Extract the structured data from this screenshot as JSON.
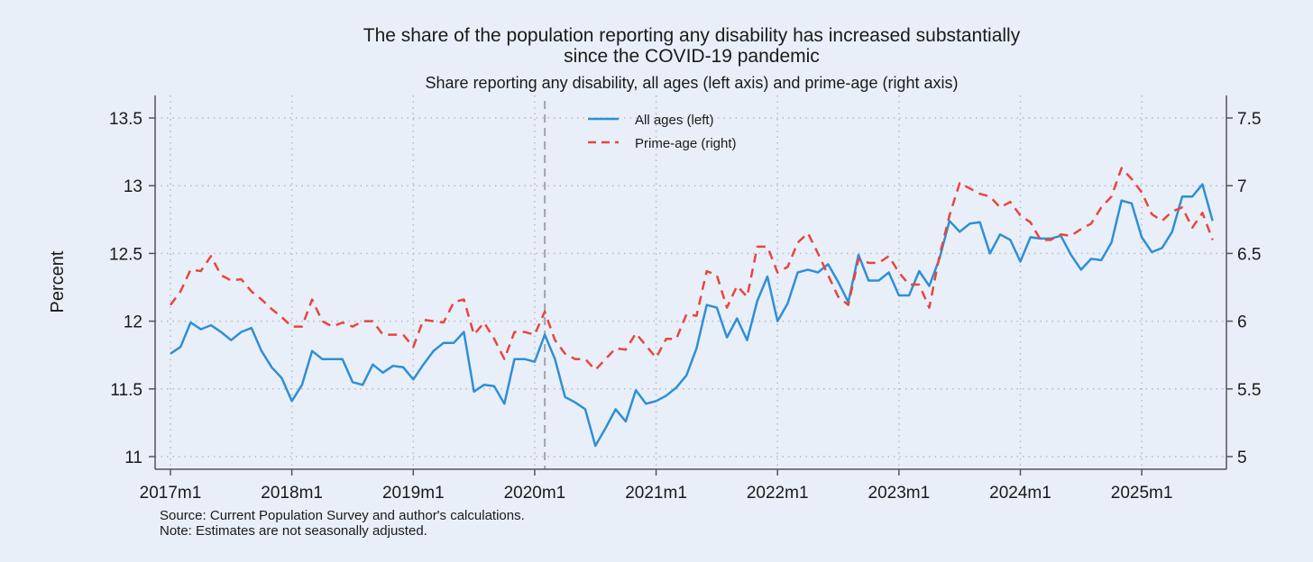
{
  "chart_data": {
    "type": "line",
    "title": "The share of the population reporting any disability has increased substantially",
    "title_line2": "since the COVID-19 pandemic",
    "subtitle": "Share reporting any disability, all ages (left axis) and prime-age (right axis)",
    "ylabel": "Percent",
    "xlabel": "",
    "x_start": "2017m1",
    "x_ticks": [
      "2017m1",
      "2018m1",
      "2019m1",
      "2020m1",
      "2021m1",
      "2022m1",
      "2023m1",
      "2024m1",
      "2025m1"
    ],
    "y_left_ticks": [
      "11",
      "11.5",
      "12",
      "12.5",
      "13",
      "13.5"
    ],
    "y_left_range": [
      11,
      13.5
    ],
    "y_right_ticks": [
      "5",
      "5.5",
      "6",
      "6.5",
      "7",
      "7.5"
    ],
    "y_right_range": [
      5,
      7.5
    ],
    "vline_at": "2020m2",
    "grid": true,
    "legend_position": "top-center",
    "series": [
      {
        "name": "All ages (left)",
        "axis": "left",
        "color": "#2e8fd6",
        "style": "solid",
        "values": [
          11.76,
          11.81,
          11.99,
          11.94,
          11.97,
          11.92,
          11.86,
          11.92,
          11.95,
          11.78,
          11.66,
          11.58,
          11.41,
          11.53,
          11.78,
          11.72,
          11.72,
          11.72,
          11.55,
          11.53,
          11.68,
          11.62,
          11.67,
          11.66,
          11.57,
          11.68,
          11.78,
          11.84,
          11.84,
          11.92,
          11.48,
          11.53,
          11.52,
          11.39,
          11.72,
          11.72,
          11.7,
          11.9,
          11.72,
          11.44,
          11.4,
          11.35,
          11.08,
          11.21,
          11.35,
          11.26,
          11.49,
          11.39,
          11.41,
          11.45,
          11.51,
          11.6,
          11.8,
          12.12,
          12.1,
          11.88,
          12.02,
          11.86,
          12.15,
          12.33,
          12.0,
          12.13,
          12.36,
          12.38,
          12.36,
          12.42,
          12.29,
          12.14,
          12.49,
          12.3,
          12.3,
          12.36,
          12.19,
          12.19,
          12.37,
          12.26,
          12.46,
          12.74,
          12.66,
          12.72,
          12.73,
          12.5,
          12.64,
          12.6,
          12.44,
          12.62,
          12.61,
          12.61,
          12.63,
          12.49,
          12.38,
          12.46,
          12.45,
          12.58,
          12.89,
          12.87,
          12.62,
          12.51,
          12.54,
          12.66,
          12.92,
          12.92,
          13.01,
          12.74
        ]
      },
      {
        "name": "Prime-age (right)",
        "axis": "right",
        "color": "#e8463c",
        "style": "dashed",
        "values": [
          6.12,
          6.22,
          6.38,
          6.37,
          6.48,
          6.34,
          6.3,
          6.31,
          6.22,
          6.16,
          6.09,
          6.03,
          5.96,
          5.96,
          6.16,
          6.0,
          5.96,
          5.99,
          5.96,
          6.0,
          6.0,
          5.9,
          5.9,
          5.9,
          5.81,
          6.01,
          6.0,
          5.99,
          6.14,
          6.16,
          5.9,
          5.99,
          5.87,
          5.72,
          5.92,
          5.92,
          5.9,
          6.07,
          5.86,
          5.76,
          5.72,
          5.72,
          5.64,
          5.72,
          5.8,
          5.79,
          5.91,
          5.82,
          5.73,
          5.87,
          5.87,
          6.05,
          6.04,
          6.37,
          6.34,
          6.1,
          6.26,
          6.18,
          6.55,
          6.55,
          6.36,
          6.4,
          6.58,
          6.65,
          6.5,
          6.34,
          6.18,
          6.12,
          6.46,
          6.43,
          6.43,
          6.48,
          6.36,
          6.27,
          6.27,
          6.1,
          6.48,
          6.78,
          7.02,
          6.98,
          6.94,
          6.92,
          6.84,
          6.88,
          6.78,
          6.73,
          6.6,
          6.6,
          6.64,
          6.63,
          6.68,
          6.72,
          6.84,
          6.92,
          7.13,
          7.05,
          6.95,
          6.79,
          6.74,
          6.81,
          6.84,
          6.69,
          6.8,
          6.6
        ]
      }
    ],
    "notes": [
      "Source: Current Population Survey and author's calculations.",
      "Note: Estimates are not seasonally adjusted."
    ]
  }
}
